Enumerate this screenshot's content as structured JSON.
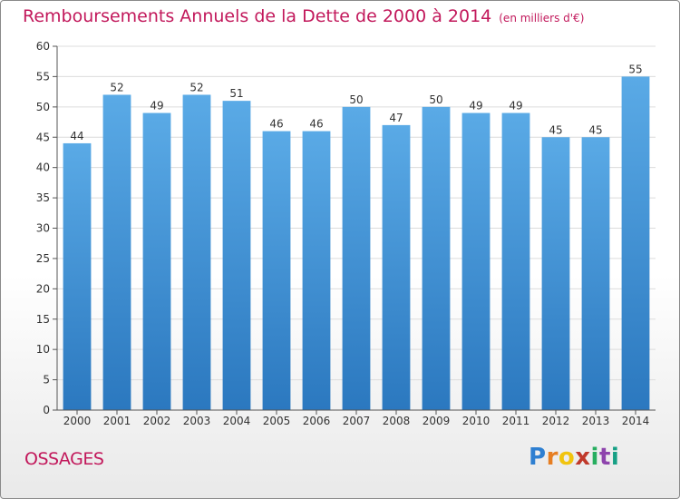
{
  "title": "Remboursements Annuels de la Dette de 2000 à 2014",
  "subtitle": "(en milliers d'€)",
  "commune": "OSSAGES",
  "logo_text": "Proxiti",
  "colors": {
    "bar": "#5aaae6",
    "bar_dark": "#2b78bf",
    "grid": "#dcdcdc",
    "axis": "#555555",
    "title": "#c2185b"
  },
  "chart_data": {
    "type": "bar",
    "title": "Remboursements Annuels de la Dette de 2000 à 2014",
    "xlabel": "",
    "ylabel": "",
    "categories": [
      "2000",
      "2001",
      "2002",
      "2003",
      "2004",
      "2005",
      "2006",
      "2007",
      "2008",
      "2009",
      "2010",
      "2011",
      "2012",
      "2013",
      "2014"
    ],
    "values": [
      44,
      52,
      49,
      52,
      51,
      46,
      46,
      50,
      47,
      50,
      49,
      49,
      45,
      45,
      55
    ],
    "ylim": [
      0,
      60
    ],
    "yticks": [
      0,
      5,
      10,
      15,
      20,
      25,
      30,
      35,
      40,
      45,
      50,
      55,
      60
    ],
    "grid": true,
    "data_labels": true
  }
}
